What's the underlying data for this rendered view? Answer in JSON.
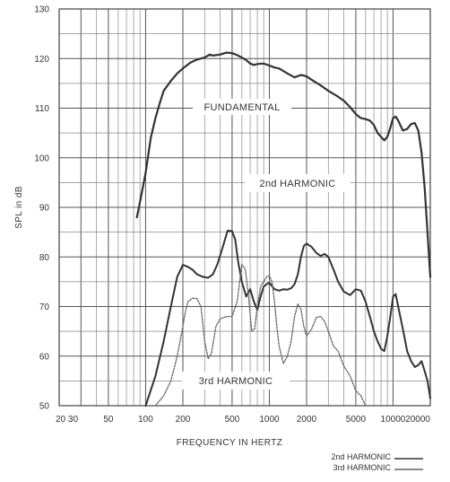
{
  "chart_data": {
    "type": "line",
    "ylabel": "SPL in dB",
    "xlabel": "FREQUENCY IN HERTZ",
    "x_scale": "log",
    "xlim": [
      20,
      20000
    ],
    "ylim": [
      50,
      130
    ],
    "grid": true,
    "x_ticks": [
      20,
      30,
      50,
      100,
      200,
      500,
      1000,
      2000,
      5000,
      10000,
      20000
    ],
    "x_tick_labels": [
      "20 30",
      "",
      "50",
      "100",
      "200",
      "500",
      "1000",
      "2000",
      "5000",
      "10000",
      "20000"
    ],
    "y_ticks": [
      50,
      60,
      70,
      80,
      90,
      100,
      110,
      120,
      130
    ],
    "annotations": [
      {
        "text": "FUNDAMENTAL",
        "target": "fundamental"
      },
      {
        "text": "2nd HARMONIC",
        "target": "second"
      },
      {
        "text": "3rd HARMONIC",
        "target": "third"
      }
    ],
    "legend": {
      "position": "bottom-right",
      "entries": [
        {
          "label": "2nd HARMONIC",
          "series": "second"
        },
        {
          "label": "3rd HARMONIC",
          "series": "third"
        }
      ]
    },
    "series": [
      {
        "id": "fundamental",
        "style": "solid",
        "color": "#333333",
        "points": [
          [
            85,
            88
          ],
          [
            90,
            91
          ],
          [
            100,
            97
          ],
          [
            110,
            104
          ],
          [
            120,
            108
          ],
          [
            130,
            111
          ],
          [
            140,
            113.5
          ],
          [
            160,
            115.5
          ],
          [
            180,
            117
          ],
          [
            200,
            118
          ],
          [
            230,
            119.2
          ],
          [
            260,
            119.8
          ],
          [
            300,
            120.2
          ],
          [
            330,
            120.8
          ],
          [
            350,
            120.6
          ],
          [
            400,
            120.8
          ],
          [
            450,
            121.2
          ],
          [
            500,
            121.1
          ],
          [
            550,
            120.7
          ],
          [
            600,
            120.2
          ],
          [
            650,
            119.7
          ],
          [
            700,
            119
          ],
          [
            750,
            118.7
          ],
          [
            800,
            118.9
          ],
          [
            900,
            119
          ],
          [
            1000,
            118.6
          ],
          [
            1100,
            118.2
          ],
          [
            1200,
            118
          ],
          [
            1400,
            117
          ],
          [
            1600,
            116.2
          ],
          [
            1800,
            116.7
          ],
          [
            2000,
            116.4
          ],
          [
            2300,
            115.4
          ],
          [
            2600,
            114.6
          ],
          [
            3000,
            113.5
          ],
          [
            3500,
            112.5
          ],
          [
            4000,
            111.5
          ],
          [
            4500,
            110.2
          ],
          [
            5000,
            108.8
          ],
          [
            5500,
            108
          ],
          [
            6000,
            107.8
          ],
          [
            6500,
            107.5
          ],
          [
            7000,
            106.6
          ],
          [
            7500,
            105
          ],
          [
            8000,
            104.2
          ],
          [
            8500,
            103.5
          ],
          [
            9000,
            104.2
          ],
          [
            9500,
            106
          ],
          [
            10000,
            108
          ],
          [
            10500,
            108.3
          ],
          [
            11000,
            107.5
          ],
          [
            12000,
            105.5
          ],
          [
            13000,
            105.8
          ],
          [
            14000,
            106.8
          ],
          [
            15000,
            107
          ],
          [
            16000,
            105.5
          ],
          [
            17000,
            101
          ],
          [
            18000,
            94
          ],
          [
            19000,
            85
          ],
          [
            20000,
            76
          ]
        ]
      },
      {
        "id": "second",
        "style": "solid",
        "color": "#333333",
        "points": [
          [
            100,
            50
          ],
          [
            120,
            56
          ],
          [
            140,
            63
          ],
          [
            160,
            70
          ],
          [
            180,
            76
          ],
          [
            200,
            78.4
          ],
          [
            220,
            78
          ],
          [
            240,
            77.4
          ],
          [
            260,
            76.5
          ],
          [
            290,
            76
          ],
          [
            320,
            75.8
          ],
          [
            350,
            76.5
          ],
          [
            380,
            78.5
          ],
          [
            420,
            82
          ],
          [
            460,
            85.3
          ],
          [
            500,
            85.2
          ],
          [
            530,
            83.5
          ],
          [
            560,
            79
          ],
          [
            600,
            75
          ],
          [
            650,
            72
          ],
          [
            700,
            73.5
          ],
          [
            750,
            71
          ],
          [
            800,
            69.3
          ],
          [
            850,
            72
          ],
          [
            900,
            74
          ],
          [
            950,
            74.5
          ],
          [
            1000,
            74.8
          ],
          [
            1100,
            73.5
          ],
          [
            1200,
            73.2
          ],
          [
            1300,
            73.5
          ],
          [
            1400,
            73.4
          ],
          [
            1500,
            73.7
          ],
          [
            1600,
            74.5
          ],
          [
            1700,
            76.5
          ],
          [
            1800,
            80
          ],
          [
            1900,
            82.2
          ],
          [
            2000,
            82.7
          ],
          [
            2200,
            82
          ],
          [
            2400,
            80.8
          ],
          [
            2600,
            80.2
          ],
          [
            2800,
            80.6
          ],
          [
            3000,
            80
          ],
          [
            3300,
            77.5
          ],
          [
            3600,
            75
          ],
          [
            4000,
            73
          ],
          [
            4500,
            72.3
          ],
          [
            5000,
            73.5
          ],
          [
            5500,
            73.2
          ],
          [
            6000,
            71
          ],
          [
            6500,
            68
          ],
          [
            7000,
            65
          ],
          [
            7500,
            63
          ],
          [
            8000,
            61.5
          ],
          [
            8500,
            61
          ],
          [
            9000,
            64
          ],
          [
            9500,
            68
          ],
          [
            10000,
            72
          ],
          [
            10500,
            72.5
          ],
          [
            11000,
            70
          ],
          [
            12000,
            65.5
          ],
          [
            13000,
            61
          ],
          [
            14000,
            59
          ],
          [
            15000,
            57.8
          ],
          [
            16000,
            58.2
          ],
          [
            17000,
            59
          ],
          [
            18000,
            57
          ],
          [
            19000,
            55
          ],
          [
            20000,
            51.5
          ]
        ]
      },
      {
        "id": "third",
        "style": "dashed",
        "color": "#666666",
        "points": [
          [
            120,
            50
          ],
          [
            140,
            52
          ],
          [
            160,
            55
          ],
          [
            180,
            60
          ],
          [
            190,
            63
          ],
          [
            200,
            66
          ],
          [
            210,
            69
          ],
          [
            220,
            71
          ],
          [
            240,
            71.7
          ],
          [
            260,
            71.6
          ],
          [
            280,
            70
          ],
          [
            300,
            63
          ],
          [
            320,
            59.5
          ],
          [
            340,
            60.5
          ],
          [
            370,
            66
          ],
          [
            400,
            67.5
          ],
          [
            450,
            68
          ],
          [
            500,
            68
          ],
          [
            550,
            71
          ],
          [
            600,
            78.5
          ],
          [
            640,
            77.5
          ],
          [
            680,
            72
          ],
          [
            720,
            65
          ],
          [
            760,
            65.5
          ],
          [
            800,
            70
          ],
          [
            850,
            74
          ],
          [
            900,
            75
          ],
          [
            950,
            76
          ],
          [
            1000,
            76.2
          ],
          [
            1050,
            75
          ],
          [
            1100,
            71
          ],
          [
            1150,
            66
          ],
          [
            1200,
            62
          ],
          [
            1300,
            58.5
          ],
          [
            1400,
            60
          ],
          [
            1500,
            63
          ],
          [
            1600,
            68
          ],
          [
            1700,
            70.5
          ],
          [
            1800,
            69.5
          ],
          [
            1900,
            66
          ],
          [
            2000,
            64
          ],
          [
            2200,
            65.5
          ],
          [
            2400,
            67.8
          ],
          [
            2600,
            68
          ],
          [
            2800,
            67
          ],
          [
            3000,
            65
          ],
          [
            3300,
            62
          ],
          [
            3600,
            61
          ],
          [
            4000,
            58
          ],
          [
            4500,
            56
          ],
          [
            5000,
            53
          ],
          [
            5500,
            52
          ],
          [
            6000,
            50
          ]
        ]
      }
    ]
  }
}
